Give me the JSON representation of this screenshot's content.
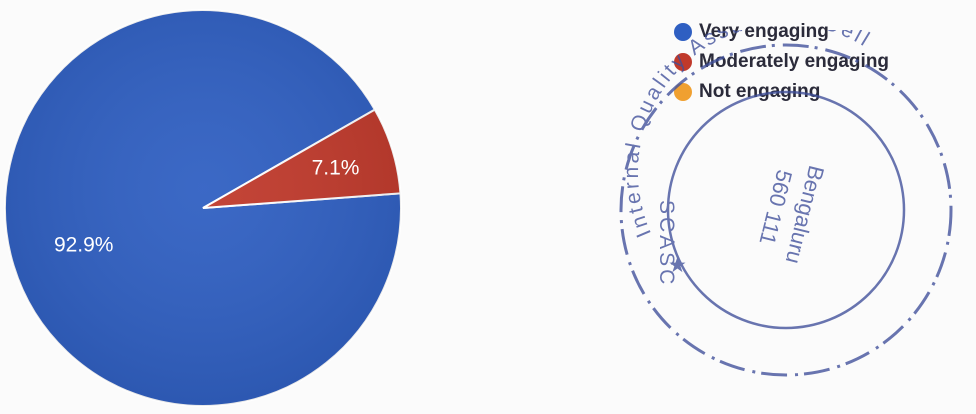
{
  "chart_data": {
    "type": "pie",
    "title": "",
    "slices": [
      {
        "label": "Very engaging",
        "value": 92.9,
        "display": "92.9%",
        "color": "#2f5fc2"
      },
      {
        "label": "Moderately engaging",
        "value": 7.1,
        "display": "7.1%",
        "color": "#c0392b"
      },
      {
        "label": "Not engaging",
        "value": 0,
        "display": "",
        "color": "#f0a030"
      }
    ],
    "legend_position": "top-right"
  },
  "stamp": {
    "outer_text": "Internal Quality Assurance Cell",
    "left_text": "SCASC",
    "star": "★",
    "inner_lines": [
      "Bengaluru",
      "560 111"
    ]
  }
}
